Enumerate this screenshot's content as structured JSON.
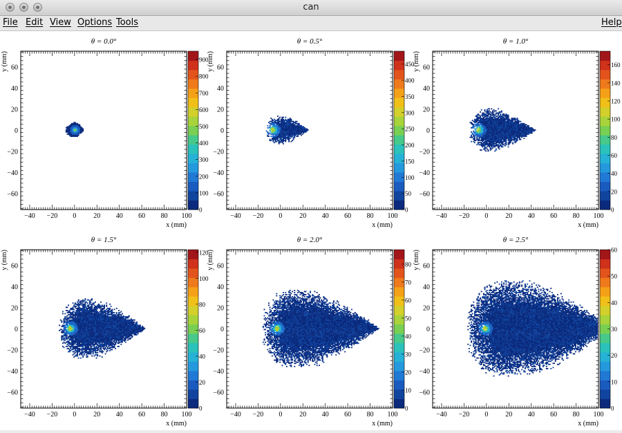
{
  "window": {
    "title": "can"
  },
  "menu": {
    "file": "File",
    "edit": "Edit",
    "view": "View",
    "options": "Options",
    "tools": "Tools",
    "help": "Help"
  },
  "colors": {
    "palette": [
      "#0b2a7d",
      "#10449e",
      "#1a5bbf",
      "#2179d6",
      "#2499dd",
      "#26b2d6",
      "#2ac2bb",
      "#46c98a",
      "#78cf52",
      "#a9d33a",
      "#d3cf2b",
      "#f0c019",
      "#f5a118",
      "#ef7a1b",
      "#e3541c",
      "#cf311b",
      "#a2161a"
    ]
  },
  "chart_data": [
    {
      "type": "heatmap",
      "title": "θ = 0.0°",
      "xlabel": "x (mm)",
      "ylabel": "y (mm)",
      "xlim": [
        -48,
        100
      ],
      "ylim": [
        -75,
        75
      ],
      "xticks": [
        "−40",
        "−20",
        "0",
        "20",
        "40",
        "60",
        "80",
        "100"
      ],
      "yticks": [
        "60",
        "40",
        "20",
        "0",
        "−20",
        "−40",
        "−60"
      ],
      "zmax": 950,
      "zticks": [
        "0",
        "100",
        "200",
        "300",
        "400",
        "500",
        "600",
        "700",
        "800",
        "900"
      ],
      "cloud": {
        "cx": 0,
        "cy": 0,
        "rx": 8,
        "ry": 7,
        "tail": 0
      }
    },
    {
      "type": "heatmap",
      "title": "θ = 0.5°",
      "xlabel": "x (mm)",
      "ylabel": "y (mm)",
      "xlim": [
        -48,
        100
      ],
      "ylim": [
        -75,
        75
      ],
      "xticks": [
        "−40",
        "−20",
        "0",
        "20",
        "40",
        "60",
        "80",
        "100"
      ],
      "yticks": [
        "60",
        "40",
        "20",
        "0",
        "−20",
        "−40",
        "−60"
      ],
      "zmax": 490,
      "zticks": [
        "0",
        "50",
        "100",
        "150",
        "200",
        "250",
        "300",
        "350",
        "400",
        "450"
      ],
      "cloud": {
        "cx": 0,
        "cy": 0,
        "rx": 13,
        "ry": 13,
        "tail": 12
      }
    },
    {
      "type": "heatmap",
      "title": "θ = 1.0°",
      "xlabel": "x (mm)",
      "ylabel": "y (mm)",
      "xlim": [
        -48,
        100
      ],
      "ylim": [
        -75,
        75
      ],
      "xticks": [
        "−40",
        "−20",
        "0",
        "20",
        "40",
        "60",
        "80",
        "100"
      ],
      "yticks": [
        "60",
        "40",
        "20",
        "0",
        "−20",
        "−40",
        "−60"
      ],
      "zmax": 175,
      "zticks": [
        "0",
        "20",
        "40",
        "60",
        "80",
        "100",
        "120",
        "140",
        "160"
      ],
      "cloud": {
        "cx": 2,
        "cy": 0,
        "rx": 17,
        "ry": 20,
        "tail": 25
      }
    },
    {
      "type": "heatmap",
      "title": "θ = 1.5°",
      "xlabel": "x (mm)",
      "ylabel": "y (mm)",
      "xlim": [
        -48,
        100
      ],
      "ylim": [
        -75,
        75
      ],
      "xticks": [
        "−40",
        "−20",
        "0",
        "20",
        "40",
        "60",
        "80",
        "100"
      ],
      "yticks": [
        "60",
        "40",
        "20",
        "0",
        "−20",
        "−40",
        "−60"
      ],
      "zmax": 122,
      "zticks": [
        "0",
        "20",
        "40",
        "60",
        "80",
        "100",
        "120"
      ],
      "cloud": {
        "cx": 8,
        "cy": 0,
        "rx": 22,
        "ry": 28,
        "tail": 33
      }
    },
    {
      "type": "heatmap",
      "title": "θ = 2.0°",
      "xlabel": "x (mm)",
      "ylabel": "y (mm)",
      "xlim": [
        -48,
        100
      ],
      "ylim": [
        -75,
        75
      ],
      "xticks": [
        "−40",
        "−20",
        "0",
        "20",
        "40",
        "60",
        "80",
        "100"
      ],
      "yticks": [
        "60",
        "40",
        "20",
        "0",
        "−20",
        "−40",
        "−60"
      ],
      "zmax": 88,
      "zticks": [
        "0",
        "10",
        "20",
        "30",
        "40",
        "50",
        "60",
        "70",
        "80"
      ],
      "cloud": {
        "cx": 12,
        "cy": 0,
        "rx": 28,
        "ry": 36,
        "tail": 48
      }
    },
    {
      "type": "heatmap",
      "title": "θ = 2.5°",
      "xlabel": "x (mm)",
      "ylabel": "y (mm)",
      "xlim": [
        -48,
        100
      ],
      "ylim": [
        -75,
        75
      ],
      "xticks": [
        "−40",
        "−20",
        "0",
        "20",
        "40",
        "60",
        "80",
        "100"
      ],
      "yticks": [
        "60",
        "40",
        "20",
        "0",
        "−20",
        "−40",
        "−60"
      ],
      "zmax": 60,
      "zticks": [
        "0",
        "10",
        "20",
        "30",
        "40",
        "50",
        "60"
      ],
      "cloud": {
        "cx": 18,
        "cy": 0,
        "rx": 35,
        "ry": 45,
        "tail": 60
      }
    }
  ]
}
